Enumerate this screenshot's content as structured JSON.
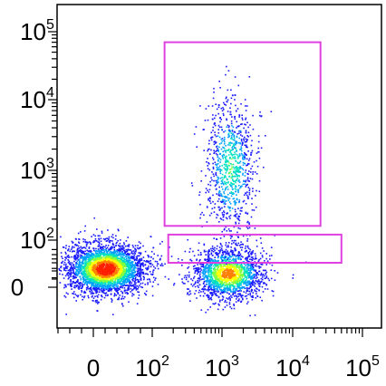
{
  "chart_data": {
    "type": "scatter",
    "title": "",
    "xlabel": "",
    "ylabel": "",
    "x_scale": "biexponential",
    "y_scale": "biexponential",
    "x_ticks": [
      {
        "value": 0,
        "base": "0",
        "exp": ""
      },
      {
        "value": 100,
        "base": "10",
        "exp": "2"
      },
      {
        "value": 1000,
        "base": "10",
        "exp": "3"
      },
      {
        "value": 10000,
        "base": "10",
        "exp": "4"
      },
      {
        "value": 100000,
        "base": "10",
        "exp": "5"
      }
    ],
    "y_ticks": [
      {
        "value": 0,
        "base": "0",
        "exp": ""
      },
      {
        "value": 100,
        "base": "10",
        "exp": "2"
      },
      {
        "value": 1000,
        "base": "10",
        "exp": "3"
      },
      {
        "value": 10000,
        "base": "10",
        "exp": "4"
      },
      {
        "value": 100000,
        "base": "10",
        "exp": "5"
      }
    ],
    "clusters": [
      {
        "name": "",
        "center": [
          20,
          40
        ],
        "points": 3200,
        "peak_density": "high"
      },
      {
        "name": "",
        "center": [
          1200,
          30
        ],
        "points": 1800,
        "peak_density": "medium"
      },
      {
        "name": "",
        "center": [
          1300,
          900
        ],
        "points": 900,
        "peak_density": "low"
      }
    ],
    "gates": [
      {
        "shape": "rectangle",
        "x_range": [
          150,
          25000
        ],
        "y_range": [
          160,
          70000
        ],
        "color": "#e040e0"
      },
      {
        "shape": "rectangle",
        "x_range": [
          170,
          50000
        ],
        "y_range": [
          -60,
          120
        ],
        "color": "#e040e0"
      }
    ],
    "density_colormap": [
      "#1a1aff",
      "#00a0ff",
      "#00e0c0",
      "#80ff40",
      "#ffff00",
      "#ff8000",
      "#ff2000"
    ],
    "grid": false,
    "legend": "none"
  }
}
